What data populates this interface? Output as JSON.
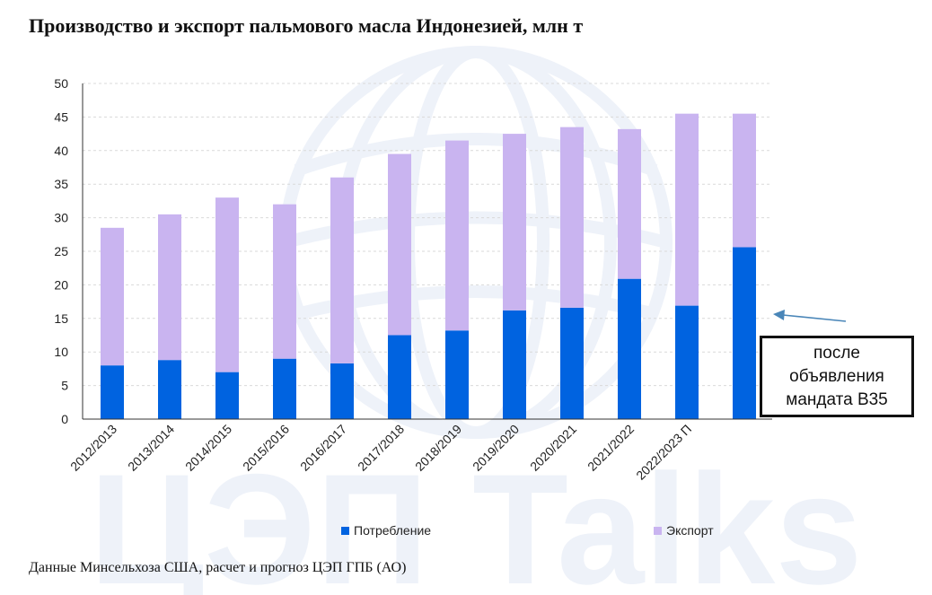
{
  "title": "Производство и экспорт пальмового масла Индонезией, млн т",
  "source": "Данные Минсельхоза США, расчет и прогноз ЦЭП ГПБ (АО)",
  "watermark_text": "ЦЭП Talks",
  "note": {
    "lines": [
      "после",
      "объявления",
      "мандата B35"
    ]
  },
  "colors": {
    "consumption": "#0063E0",
    "export": "#C9B4F0",
    "grid": "#D9D9D9",
    "watermark": "#EEF2F9"
  },
  "chart_data": {
    "type": "bar",
    "stacked": true,
    "categories": [
      "2012/2013",
      "2013/2014",
      "2014/2015",
      "2015/2016",
      "2016/2017",
      "2017/2018",
      "2018/2019",
      "2019/2020",
      "2020/2021",
      "2021/2022",
      "2022/2023 П",
      ""
    ],
    "series": [
      {
        "name": "Потребление",
        "values": [
          8.0,
          8.8,
          7.0,
          9.0,
          8.3,
          12.5,
          13.2,
          16.2,
          16.6,
          20.9,
          16.9,
          25.6
        ]
      },
      {
        "name": "Экспорт",
        "values": [
          20.5,
          21.7,
          26.0,
          23.0,
          27.7,
          27.0,
          28.3,
          26.3,
          26.9,
          22.3,
          28.6,
          19.9
        ]
      }
    ],
    "ylim": [
      0,
      50
    ],
    "yticks": [
      0,
      5,
      10,
      15,
      20,
      25,
      30,
      35,
      40,
      45,
      50
    ],
    "grid": true,
    "legend_position": "bottom"
  }
}
